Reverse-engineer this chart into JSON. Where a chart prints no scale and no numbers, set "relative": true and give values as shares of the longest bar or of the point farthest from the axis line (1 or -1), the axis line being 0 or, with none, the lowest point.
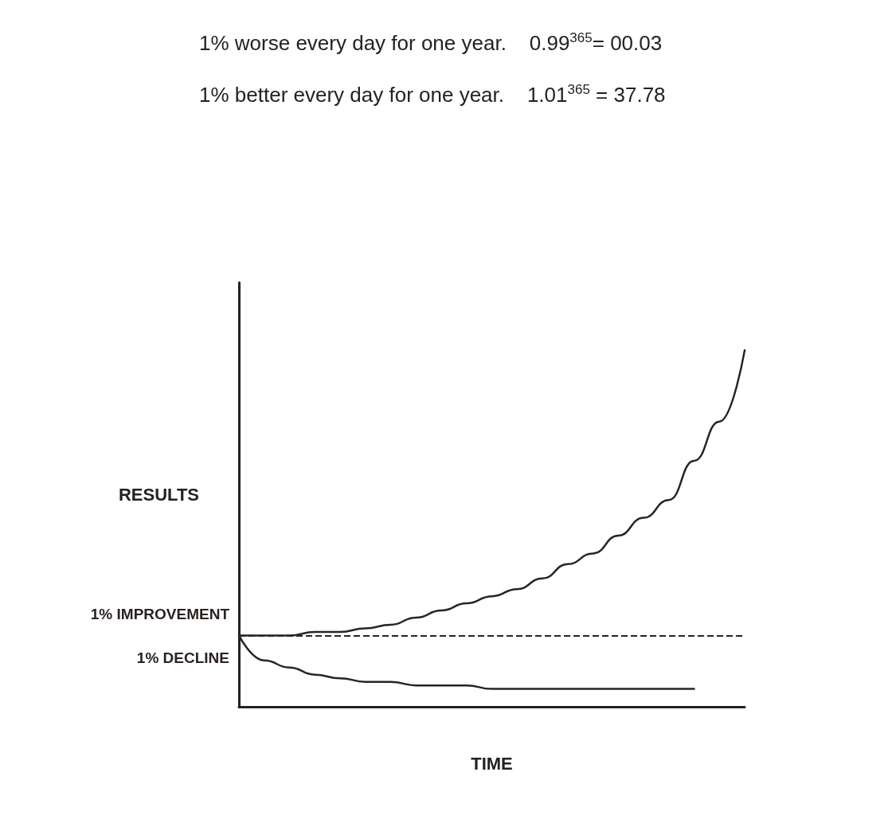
{
  "chart_data": {
    "type": "line",
    "title": "1% worse every day for one year.    0.99$^{365}$= 00.03",
    "subtitle": "1% better every day for one year.    1.01$^{365}$ = 37.78",
    "xlabel": "TIME",
    "ylabel": "RESULTS",
    "relative": true,
    "grid": false,
    "legend": false,
    "marker": "none",
    "line_style": "solid",
    "categories": [
      null,
      null,
      null,
      null,
      null,
      null,
      null,
      null,
      null,
      null,
      null,
      null,
      null,
      null,
      null,
      null,
      null,
      null,
      null,
      null,
      null
    ],
    "series": [
      {
        "name": "1% IMPROVEMENT",
        "color": "#2b2321",
        "values": [
          0.2,
          0.2,
          0.2,
          0.21,
          0.21,
          0.22,
          0.23,
          0.25,
          0.27,
          0.29,
          0.31,
          0.33,
          0.36,
          0.4,
          0.43,
          0.48,
          0.53,
          0.58,
          0.69,
          0.8,
          1.0
        ]
      },
      {
        "name": "1% DECLINE",
        "color": "#2b2321",
        "values": [
          0.2,
          0.13,
          0.11,
          0.09,
          0.08,
          0.07,
          0.07,
          0.06,
          0.06,
          0.06,
          0.05,
          0.05,
          0.05,
          0.05,
          0.05,
          0.05,
          0.05,
          0.05,
          0.05,
          null,
          null
        ]
      }
    ],
    "ref_lines": [
      {
        "axis": "y",
        "value": 0.2,
        "color": "#2b2321",
        "line_style": "dashed"
      }
    ]
  }
}
